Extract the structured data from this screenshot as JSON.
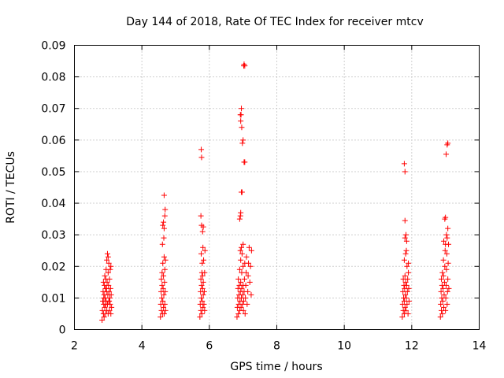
{
  "chart_data": {
    "type": "scatter",
    "title": "Day 144 of 2018, Rate Of TEC Index for receiver mtcv",
    "xlabel": "GPS time / hours",
    "ylabel": "ROTI / TECUs",
    "xlim": [
      2,
      14
    ],
    "ylim": [
      0,
      0.09
    ],
    "xticks": [
      2,
      4,
      6,
      8,
      10,
      12,
      14
    ],
    "yticks": [
      0,
      0.01,
      0.02,
      0.03,
      0.04,
      0.05,
      0.06,
      0.07,
      0.08,
      0.09
    ],
    "ytick_labels": [
      "0",
      "0.01",
      "0.02",
      "0.03",
      "0.04",
      "0.05",
      "0.06",
      "0.07",
      "0.08",
      "0.09"
    ],
    "grid": true,
    "marker": "+",
    "color": "#ff0000",
    "series": [
      {
        "name": "ROTI",
        "points": [
          [
            2.82,
            0.003
          ],
          [
            2.83,
            0.006
          ],
          [
            2.84,
            0.009
          ],
          [
            2.85,
            0.012
          ],
          [
            2.86,
            0.015
          ],
          [
            2.86,
            0.005
          ],
          [
            2.87,
            0.008
          ],
          [
            2.88,
            0.011
          ],
          [
            2.88,
            0.004
          ],
          [
            2.89,
            0.014
          ],
          [
            2.9,
            0.007
          ],
          [
            2.9,
            0.017
          ],
          [
            2.91,
            0.01
          ],
          [
            2.92,
            0.013
          ],
          [
            2.92,
            0.005
          ],
          [
            2.93,
            0.016
          ],
          [
            2.94,
            0.009
          ],
          [
            2.94,
            0.019
          ],
          [
            2.95,
            0.012
          ],
          [
            2.96,
            0.006
          ],
          [
            2.96,
            0.022
          ],
          [
            2.97,
            0.015
          ],
          [
            2.98,
            0.008
          ],
          [
            2.98,
            0.024
          ],
          [
            2.99,
            0.011
          ],
          [
            3.0,
            0.018
          ],
          [
            3.0,
            0.005
          ],
          [
            3.01,
            0.014
          ],
          [
            3.02,
            0.021
          ],
          [
            3.02,
            0.009
          ],
          [
            3.03,
            0.012
          ],
          [
            3.04,
            0.006
          ],
          [
            3.04,
            0.016
          ],
          [
            3.05,
            0.01
          ],
          [
            3.06,
            0.019
          ],
          [
            3.06,
            0.008
          ],
          [
            3.07,
            0.013
          ],
          [
            3.08,
            0.005
          ],
          [
            3.08,
            0.02
          ],
          [
            3.09,
            0.011
          ],
          [
            3.1,
            0.007
          ],
          [
            3.0,
            0.023
          ],
          [
            2.95,
            0.013
          ],
          [
            2.87,
            0.01
          ],
          [
            2.93,
            0.008
          ],
          [
            3.03,
            0.009
          ],
          [
            4.55,
            0.004
          ],
          [
            4.56,
            0.008
          ],
          [
            4.57,
            0.012
          ],
          [
            4.58,
            0.016
          ],
          [
            4.58,
            0.006
          ],
          [
            4.59,
            0.01
          ],
          [
            4.6,
            0.014
          ],
          [
            4.6,
            0.018
          ],
          [
            4.61,
            0.005
          ],
          [
            4.62,
            0.009
          ],
          [
            4.62,
            0.021
          ],
          [
            4.63,
            0.013
          ],
          [
            4.64,
            0.007
          ],
          [
            4.64,
            0.017
          ],
          [
            4.65,
            0.011
          ],
          [
            4.66,
            0.023
          ],
          [
            4.66,
            0.005
          ],
          [
            4.67,
            0.015
          ],
          [
            4.68,
            0.008
          ],
          [
            4.68,
            0.019
          ],
          [
            4.69,
            0.012
          ],
          [
            4.7,
            0.006
          ],
          [
            4.7,
            0.022
          ],
          [
            4.62,
            0.033
          ],
          [
            4.64,
            0.034
          ],
          [
            4.66,
            0.032
          ],
          [
            4.68,
            0.036
          ],
          [
            4.69,
            0.038
          ],
          [
            4.66,
            0.0425
          ],
          [
            4.61,
            0.027
          ],
          [
            4.65,
            0.029
          ],
          [
            5.72,
            0.004
          ],
          [
            5.73,
            0.008
          ],
          [
            5.74,
            0.012
          ],
          [
            5.75,
            0.016
          ],
          [
            5.75,
            0.006
          ],
          [
            5.76,
            0.01
          ],
          [
            5.77,
            0.014
          ],
          [
            5.78,
            0.018
          ],
          [
            5.78,
            0.005
          ],
          [
            5.79,
            0.009
          ],
          [
            5.8,
            0.013
          ],
          [
            5.8,
            0.017
          ],
          [
            5.81,
            0.007
          ],
          [
            5.82,
            0.011
          ],
          [
            5.82,
            0.015
          ],
          [
            5.83,
            0.022
          ],
          [
            5.84,
            0.008
          ],
          [
            5.85,
            0.012
          ],
          [
            5.86,
            0.018
          ],
          [
            5.86,
            0.006
          ],
          [
            5.87,
            0.025
          ],
          [
            5.76,
            0.024
          ],
          [
            5.79,
            0.021
          ],
          [
            5.81,
            0.026
          ],
          [
            5.75,
            0.036
          ],
          [
            5.77,
            0.033
          ],
          [
            5.8,
            0.031
          ],
          [
            5.82,
            0.0325
          ],
          [
            5.77,
            0.0545
          ],
          [
            5.76,
            0.057
          ],
          [
            6.82,
            0.004
          ],
          [
            6.83,
            0.007
          ],
          [
            6.84,
            0.01
          ],
          [
            6.85,
            0.013
          ],
          [
            6.86,
            0.016
          ],
          [
            6.86,
            0.005
          ],
          [
            6.87,
            0.008
          ],
          [
            6.88,
            0.011
          ],
          [
            6.89,
            0.014
          ],
          [
            6.9,
            0.019
          ],
          [
            6.9,
            0.006
          ],
          [
            6.91,
            0.009
          ],
          [
            6.92,
            0.012
          ],
          [
            6.93,
            0.015
          ],
          [
            6.93,
            0.022
          ],
          [
            6.94,
            0.007
          ],
          [
            6.95,
            0.01
          ],
          [
            6.96,
            0.013
          ],
          [
            6.96,
            0.018
          ],
          [
            6.97,
            0.024
          ],
          [
            6.98,
            0.008
          ],
          [
            6.99,
            0.011
          ],
          [
            7.0,
            0.014
          ],
          [
            7.0,
            0.02
          ],
          [
            7.01,
            0.006
          ],
          [
            7.02,
            0.009
          ],
          [
            7.03,
            0.012
          ],
          [
            7.04,
            0.016
          ],
          [
            7.05,
            0.021
          ],
          [
            7.06,
            0.005
          ],
          [
            7.07,
            0.01
          ],
          [
            7.08,
            0.014
          ],
          [
            7.09,
            0.018
          ],
          [
            7.1,
            0.023
          ],
          [
            7.12,
            0.008
          ],
          [
            7.14,
            0.012
          ],
          [
            7.15,
            0.017
          ],
          [
            7.16,
            0.021
          ],
          [
            7.18,
            0.026
          ],
          [
            7.2,
            0.015
          ],
          [
            7.22,
            0.02
          ],
          [
            7.24,
            0.011
          ],
          [
            7.25,
            0.025
          ],
          [
            7.0,
            0.027
          ],
          [
            6.95,
            0.026
          ],
          [
            6.92,
            0.025
          ],
          [
            6.9,
            0.035
          ],
          [
            6.92,
            0.036
          ],
          [
            6.93,
            0.037
          ],
          [
            6.95,
            0.0435
          ],
          [
            6.97,
            0.0435
          ],
          [
            7.03,
            0.053
          ],
          [
            7.05,
            0.053
          ],
          [
            6.98,
            0.059
          ],
          [
            7.0,
            0.06
          ],
          [
            6.96,
            0.064
          ],
          [
            6.93,
            0.066
          ],
          [
            6.94,
            0.068
          ],
          [
            6.95,
            0.07
          ],
          [
            6.92,
            0.068
          ],
          [
            7.02,
            0.0835
          ],
          [
            7.03,
            0.084
          ],
          [
            7.05,
            0.0835
          ],
          [
            11.72,
            0.004
          ],
          [
            11.73,
            0.008
          ],
          [
            11.74,
            0.012
          ],
          [
            11.75,
            0.016
          ],
          [
            11.75,
            0.006
          ],
          [
            11.76,
            0.01
          ],
          [
            11.77,
            0.014
          ],
          [
            11.78,
            0.005
          ],
          [
            11.78,
            0.009
          ],
          [
            11.79,
            0.013
          ],
          [
            11.8,
            0.017
          ],
          [
            11.8,
            0.007
          ],
          [
            11.81,
            0.011
          ],
          [
            11.82,
            0.015
          ],
          [
            11.83,
            0.006
          ],
          [
            11.84,
            0.01
          ],
          [
            11.85,
            0.014
          ],
          [
            11.86,
            0.008
          ],
          [
            11.87,
            0.012
          ],
          [
            11.88,
            0.016
          ],
          [
            11.89,
            0.005
          ],
          [
            11.9,
            0.018
          ],
          [
            11.91,
            0.013
          ],
          [
            11.92,
            0.009
          ],
          [
            11.78,
            0.022
          ],
          [
            11.82,
            0.024
          ],
          [
            11.86,
            0.02
          ],
          [
            11.9,
            0.021
          ],
          [
            11.84,
            0.025
          ],
          [
            11.8,
            0.029
          ],
          [
            11.83,
            0.03
          ],
          [
            11.85,
            0.028
          ],
          [
            11.8,
            0.0345
          ],
          [
            11.8,
            0.05
          ],
          [
            11.78,
            0.0525
          ],
          [
            12.85,
            0.004
          ],
          [
            12.86,
            0.008
          ],
          [
            12.87,
            0.012
          ],
          [
            12.88,
            0.016
          ],
          [
            12.88,
            0.006
          ],
          [
            12.89,
            0.01
          ],
          [
            12.9,
            0.014
          ],
          [
            12.91,
            0.018
          ],
          [
            12.91,
            0.005
          ],
          [
            12.92,
            0.009
          ],
          [
            12.93,
            0.013
          ],
          [
            12.94,
            0.017
          ],
          [
            12.94,
            0.022
          ],
          [
            12.95,
            0.007
          ],
          [
            12.96,
            0.011
          ],
          [
            12.97,
            0.015
          ],
          [
            12.98,
            0.02
          ],
          [
            12.99,
            0.025
          ],
          [
            13.0,
            0.006
          ],
          [
            13.01,
            0.01
          ],
          [
            13.02,
            0.014
          ],
          [
            13.03,
            0.019
          ],
          [
            13.04,
            0.024
          ],
          [
            13.05,
            0.008
          ],
          [
            13.06,
            0.012
          ],
          [
            13.07,
            0.016
          ],
          [
            13.08,
            0.021
          ],
          [
            13.09,
            0.027
          ],
          [
            13.1,
            0.013
          ],
          [
            12.95,
            0.028
          ],
          [
            13.0,
            0.027
          ],
          [
            13.05,
            0.029
          ],
          [
            12.98,
            0.035
          ],
          [
            13.0,
            0.0355
          ],
          [
            13.03,
            0.03
          ],
          [
            13.07,
            0.032
          ],
          [
            13.02,
            0.0555
          ],
          [
            13.05,
            0.0585
          ],
          [
            13.07,
            0.059
          ]
        ]
      }
    ]
  }
}
